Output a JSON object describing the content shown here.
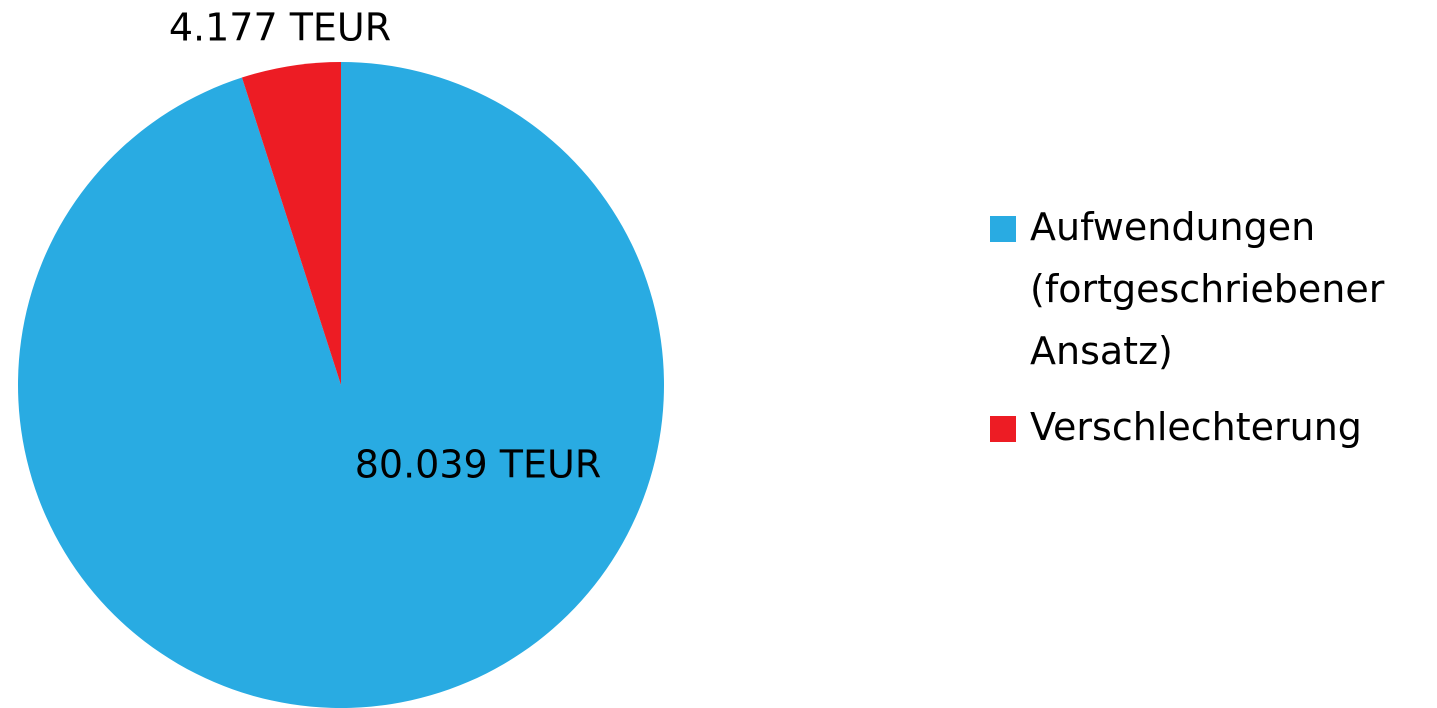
{
  "chart_data": {
    "type": "pie",
    "categories": [
      "Aufwendungen (fortgeschriebener Ansatz)",
      "Verschlechterung"
    ],
    "values": [
      80039,
      4177
    ],
    "value_labels": [
      "80.039 TEUR",
      "4.177 TEUR"
    ],
    "colors": [
      "#29abe2",
      "#ed1c24"
    ],
    "legend": "right"
  }
}
